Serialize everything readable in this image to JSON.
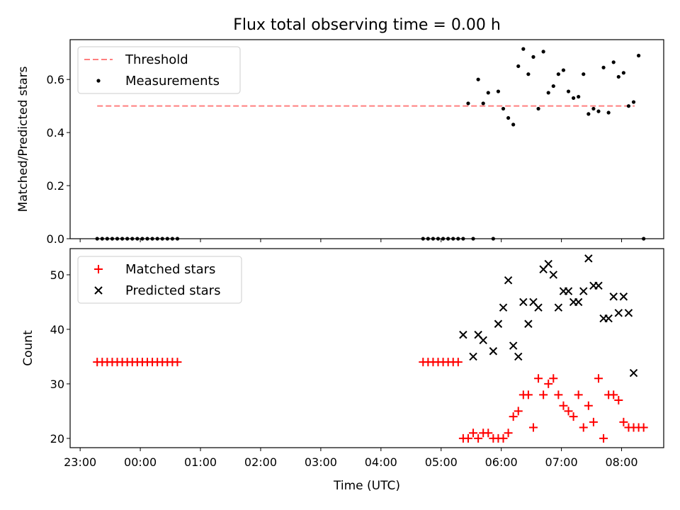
{
  "chart_data": [
    {
      "type": "scatter",
      "title": "Flux total observing time = 0.00 h",
      "xlabel": "",
      "ylabel": "Matched/Predicted stars",
      "ylim": [
        0,
        0.75
      ],
      "yticks": [
        "0.0",
        "0.2",
        "0.4",
        "0.6"
      ],
      "x_axis_type": "time",
      "xlim": [
        "22:50",
        "08:42"
      ],
      "legend_position": "top-left",
      "grid": false,
      "series": [
        {
          "name": "Threshold",
          "kind": "dashed-line",
          "color": "#ff7f7f",
          "x": [
            "23:17",
            "08:13"
          ],
          "y": [
            0.5,
            0.5
          ]
        },
        {
          "name": "Measurements",
          "kind": "dot",
          "color": "#000000",
          "x": [
            "23:17",
            "23:22",
            "23:27",
            "23:32",
            "23:37",
            "23:42",
            "23:47",
            "23:52",
            "23:57",
            "00:02",
            "00:07",
            "00:12",
            "00:17",
            "00:22",
            "00:27",
            "00:32",
            "00:37",
            "04:42",
            "04:47",
            "04:52",
            "04:57",
            "05:02",
            "05:07",
            "05:12",
            "05:17",
            "05:22",
            "05:27",
            "05:32",
            "05:37",
            "05:42",
            "05:47",
            "05:52",
            "05:57",
            "06:02",
            "06:07",
            "06:12",
            "06:17",
            "06:22",
            "06:27",
            "06:32",
            "06:37",
            "06:42",
            "06:47",
            "06:52",
            "06:57",
            "07:02",
            "07:07",
            "07:12",
            "07:17",
            "07:22",
            "07:27",
            "07:32",
            "07:37",
            "07:42",
            "07:47",
            "07:52",
            "07:57",
            "08:02",
            "08:07",
            "08:12",
            "08:17",
            "08:22"
          ],
          "y": [
            0,
            0,
            0,
            0,
            0,
            0,
            0,
            0,
            0,
            0,
            0,
            0,
            0,
            0,
            0,
            0,
            0,
            0,
            0,
            0,
            0,
            0,
            0,
            0,
            0,
            0,
            0.51,
            0,
            0.6,
            0.51,
            0.55,
            0,
            0.555,
            0.49,
            0.455,
            0.43,
            0.65,
            0.715,
            0.62,
            0.685,
            0.49,
            0.705,
            0.55,
            0.575,
            0.62,
            0.635,
            0.555,
            0.53,
            0.535,
            0.62,
            0.47,
            0.49,
            0.48,
            0.645,
            0.475,
            0.665,
            0.61,
            0.625,
            0.5,
            0.515,
            0.69,
            0
          ]
        }
      ]
    },
    {
      "type": "scatter",
      "title": "",
      "xlabel": "Time (UTC)",
      "ylabel": "Count",
      "ylim": [
        18.3,
        54.8
      ],
      "yticks": [
        "20",
        "30",
        "40",
        "50"
      ],
      "x_axis_type": "time",
      "xlim": [
        "22:50",
        "08:42"
      ],
      "xticks": [
        "23:00",
        "00:00",
        "01:00",
        "02:00",
        "03:00",
        "04:00",
        "05:00",
        "06:00",
        "07:00",
        "08:00"
      ],
      "legend_position": "top-left",
      "grid": false,
      "series": [
        {
          "name": "Matched stars",
          "kind": "plus",
          "color": "#ff0000",
          "x": [
            "23:17",
            "23:22",
            "23:27",
            "23:32",
            "23:37",
            "23:42",
            "23:47",
            "23:52",
            "23:57",
            "00:02",
            "00:07",
            "00:12",
            "00:17",
            "00:22",
            "00:27",
            "00:32",
            "00:37",
            "04:42",
            "04:47",
            "04:52",
            "04:57",
            "05:02",
            "05:07",
            "05:12",
            "05:17",
            "05:22",
            "05:27",
            "05:32",
            "05:37",
            "05:42",
            "05:47",
            "05:52",
            "05:57",
            "06:02",
            "06:07",
            "06:12",
            "06:17",
            "06:22",
            "06:27",
            "06:32",
            "06:37",
            "06:42",
            "06:47",
            "06:52",
            "06:57",
            "07:02",
            "07:07",
            "07:12",
            "07:17",
            "07:22",
            "07:27",
            "07:32",
            "07:37",
            "07:42",
            "07:47",
            "07:52",
            "07:57",
            "08:02",
            "08:07",
            "08:12",
            "08:17",
            "08:22"
          ],
          "y": [
            34,
            34,
            34,
            34,
            34,
            34,
            34,
            34,
            34,
            34,
            34,
            34,
            34,
            34,
            34,
            34,
            34,
            34,
            34,
            34,
            34,
            34,
            34,
            34,
            34,
            20,
            20,
            21,
            20,
            21,
            21,
            20,
            20,
            20,
            21,
            24,
            25,
            28,
            28,
            22,
            31,
            28,
            30,
            31,
            28,
            26,
            25,
            24,
            28,
            22,
            26,
            23,
            31,
            20,
            28,
            28,
            27,
            23,
            22,
            22,
            22,
            22
          ]
        },
        {
          "name": "Predicted stars",
          "kind": "x",
          "color": "#000000",
          "x": [
            "05:22",
            "05:32",
            "05:37",
            "05:42",
            "05:52",
            "05:57",
            "06:02",
            "06:07",
            "06:12",
            "06:17",
            "06:22",
            "06:27",
            "06:32",
            "06:37",
            "06:42",
            "06:47",
            "06:52",
            "06:57",
            "07:02",
            "07:07",
            "07:12",
            "07:17",
            "07:22",
            "07:27",
            "07:32",
            "07:37",
            "07:42",
            "07:47",
            "07:52",
            "07:57",
            "08:02",
            "08:07",
            "08:12"
          ],
          "y": [
            39,
            35,
            39,
            38,
            36,
            41,
            44,
            49,
            37,
            35,
            45,
            41,
            45,
            44,
            51,
            52,
            50,
            44,
            47,
            47,
            45,
            45,
            47,
            53,
            48,
            48,
            42,
            42,
            46,
            43,
            46,
            43,
            32
          ]
        }
      ]
    }
  ]
}
